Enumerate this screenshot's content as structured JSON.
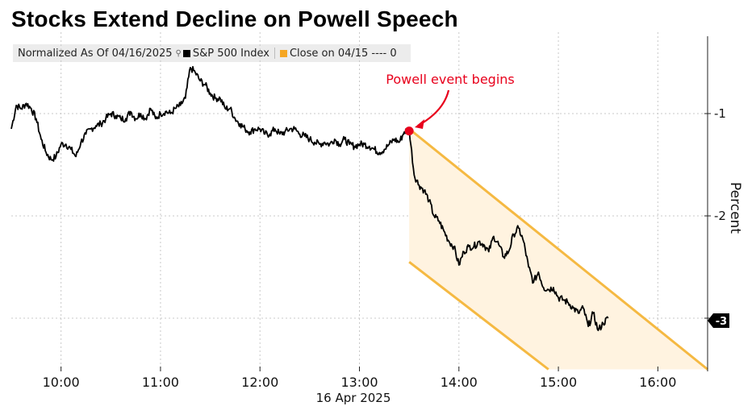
{
  "chart_data": {
    "type": "line",
    "title": "Stocks Extend Decline on Powell Speech",
    "subtitle": "Normalized As Of 04/16/2025",
    "xlabel": "16 Apr 2025",
    "ylabel": "Percent",
    "x_ticks": [
      "10:00",
      "11:00",
      "12:00",
      "13:00",
      "14:00",
      "15:00",
      "16:00"
    ],
    "y_ticks": [
      -1,
      -2,
      -3
    ],
    "y_tick_labels": [
      "-1",
      "-2",
      "-3"
    ],
    "ylim": [
      -3.5,
      -0.3
    ],
    "xlim": [
      9.5,
      16.5
    ],
    "grid": true,
    "legend": [
      "S&P 500 Index",
      "Close on 04/15 ---- 0"
    ],
    "legend_placement": "top-left",
    "colors": {
      "series": "#000000",
      "band": "#f5b942",
      "band_fill": "#fff3e0",
      "annotation": "#e8001c",
      "tag": "#000000"
    },
    "last_value_tag": "-3",
    "series": [
      {
        "name": "S&P 500 Index",
        "x": [
          9.5,
          9.55,
          9.6,
          9.65,
          9.7,
          9.75,
          9.8,
          9.85,
          9.9,
          9.95,
          10.0,
          10.05,
          10.1,
          10.15,
          10.2,
          10.25,
          10.3,
          10.35,
          10.4,
          10.45,
          10.5,
          10.55,
          10.6,
          10.65,
          10.7,
          10.75,
          10.8,
          10.85,
          10.9,
          10.95,
          11.0,
          11.05,
          11.1,
          11.15,
          11.2,
          11.25,
          11.3,
          11.35,
          11.4,
          11.45,
          11.5,
          11.55,
          11.6,
          11.65,
          11.7,
          11.75,
          11.8,
          11.85,
          11.9,
          11.95,
          12.0,
          12.05,
          12.1,
          12.15,
          12.2,
          12.25,
          12.3,
          12.35,
          12.4,
          12.45,
          12.5,
          12.55,
          12.6,
          12.65,
          12.7,
          12.75,
          12.8,
          12.85,
          12.9,
          12.95,
          13.0,
          13.05,
          13.1,
          13.15,
          13.2,
          13.25,
          13.3,
          13.35,
          13.4,
          13.45,
          13.5,
          13.55,
          13.6,
          13.65,
          13.7,
          13.75,
          13.8,
          13.85,
          13.9,
          13.95,
          14.0,
          14.05,
          14.1,
          14.15,
          14.2,
          14.25,
          14.3,
          14.35,
          14.4,
          14.45,
          14.5,
          14.55,
          14.6,
          14.65,
          14.7,
          14.75,
          14.8,
          14.85,
          14.9,
          14.95,
          15.0,
          15.05,
          15.1,
          15.15,
          15.2,
          15.25,
          15.3,
          15.35,
          15.4,
          15.45,
          15.5
        ],
        "values": [
          -1.15,
          -0.92,
          -0.95,
          -0.9,
          -0.95,
          -1.05,
          -1.25,
          -1.38,
          -1.45,
          -1.42,
          -1.3,
          -1.3,
          -1.35,
          -1.42,
          -1.28,
          -1.2,
          -1.15,
          -1.12,
          -1.1,
          -1.05,
          -1.0,
          -1.02,
          -1.05,
          -1.05,
          -0.98,
          -1.05,
          -1.0,
          -1.05,
          -0.95,
          -1.05,
          -1.0,
          -0.98,
          -1.0,
          -0.95,
          -0.92,
          -0.85,
          -0.55,
          -0.6,
          -0.68,
          -0.72,
          -0.8,
          -0.85,
          -0.85,
          -0.95,
          -0.95,
          -1.05,
          -1.1,
          -1.15,
          -1.18,
          -1.15,
          -1.15,
          -1.2,
          -1.2,
          -1.15,
          -1.2,
          -1.18,
          -1.15,
          -1.15,
          -1.2,
          -1.22,
          -1.25,
          -1.28,
          -1.3,
          -1.28,
          -1.3,
          -1.25,
          -1.3,
          -1.25,
          -1.3,
          -1.32,
          -1.3,
          -1.3,
          -1.32,
          -1.35,
          -1.38,
          -1.35,
          -1.3,
          -1.25,
          -1.28,
          -1.18,
          -1.15,
          -1.6,
          -1.7,
          -1.75,
          -1.85,
          -2.0,
          -2.05,
          -2.15,
          -2.25,
          -2.3,
          -2.48,
          -2.35,
          -2.3,
          -2.3,
          -2.25,
          -2.28,
          -2.35,
          -2.2,
          -2.28,
          -2.4,
          -2.35,
          -2.18,
          -2.12,
          -2.25,
          -2.5,
          -2.65,
          -2.55,
          -2.7,
          -2.72,
          -2.7,
          -2.8,
          -2.82,
          -2.85,
          -2.9,
          -2.95,
          -2.9,
          -3.08,
          -2.95,
          -3.12,
          -3.05,
          -3.0
        ]
      }
    ]
  },
  "annotation": {
    "text": "Powell event begins",
    "x": 13.5,
    "y": -1.17
  },
  "band": {
    "upper": [
      [
        13.5,
        -1.15
      ],
      [
        16.5,
        -3.5
      ]
    ],
    "lower": [
      [
        13.5,
        -2.45
      ],
      [
        14.9,
        -3.5
      ]
    ],
    "x_start": 13.5
  }
}
